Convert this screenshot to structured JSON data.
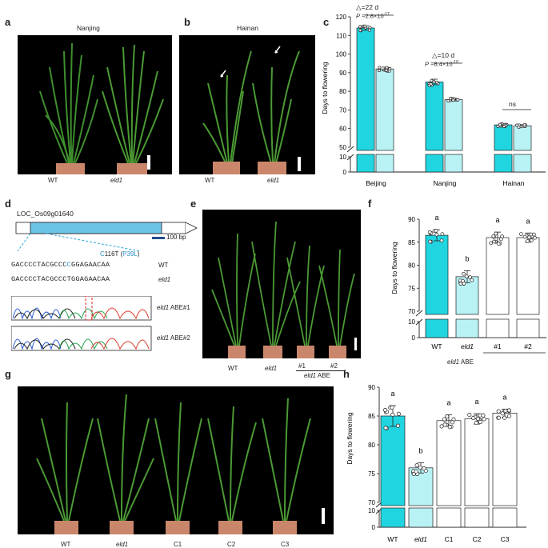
{
  "panels": {
    "a": {
      "label": "a",
      "location": "Nanjing",
      "names": [
        "WT",
        "eld1"
      ]
    },
    "b": {
      "label": "b",
      "location": "Hainan",
      "names": [
        "WT",
        "eld1"
      ]
    },
    "c": {
      "label": "c",
      "ylabel": "Days to flowering",
      "groups": [
        "Beijing",
        "Nanjing",
        "Hainan"
      ],
      "ann": {
        "d1": "=22 d",
        "p1": "=2.8×10",
        "e1": "-17",
        "d2": "=10 d",
        "p2": "=8.4×10",
        "e2": "-10",
        "ns": "ns",
        "P": "P"
      }
    },
    "d": {
      "label": "d",
      "gene": "LOC_Os09g01640",
      "scale": "100 bp",
      "mutation_c": "C",
      "mutation_rest": "116T (",
      "mutation_p": "P39L",
      "mutation_close": ")",
      "seq_wt_a": "GACCCCTACGCCC",
      "seq_wt_b": "C",
      "seq_wt_c": "GGAGAACAA",
      "seq_mut_a": "GACCCCTACGCCC",
      "seq_mut_b": "T",
      "seq_mut_c": "GGAGAACAA",
      "wt": "WT",
      "mut": "eld1",
      "abe1": "eld1",
      "abe1_suffix": " ABE#1",
      "abe2": "eld1",
      "abe2_suffix": " ABE#2"
    },
    "e": {
      "label": "e",
      "names": [
        "WT",
        "eld1",
        "#1",
        "#2"
      ],
      "abe_group": "eld1",
      "abe_suffix": " ABE"
    },
    "f": {
      "label": "f",
      "ylabel": "Days to flowering",
      "letters": [
        "a",
        "b",
        "a",
        "a"
      ],
      "xl": [
        "WT",
        "eld1",
        "#1",
        "#2"
      ],
      "abe": "eld1",
      "abe_suffix": " ABE"
    },
    "g": {
      "label": "g",
      "names": [
        "WT",
        "eld1",
        "C1",
        "C2",
        "C3"
      ]
    },
    "h": {
      "label": "h",
      "ylabel": "Days to flowering",
      "letters": [
        "a",
        "b",
        "a",
        "a",
        "a"
      ],
      "xl": [
        "WT",
        "eld1",
        "C1",
        "C2",
        "C3"
      ]
    }
  },
  "colors": {
    "cyan": "#20d5e0",
    "lightcyan": "#b8f2f5",
    "photo_bg": "#000000",
    "pot": "#c9866b",
    "plant": "#3f8f2e",
    "mutation_blue": "#2a90c8",
    "dashes": "#2fa9d8"
  },
  "chart_data": [
    {
      "id": "c",
      "type": "bar",
      "ylabel": "Days to flowering",
      "categories": [
        "Beijing",
        "Nanjing",
        "Hainan"
      ],
      "series": [
        {
          "values": [
            114,
            85,
            62
          ]
        },
        {
          "values": [
            92,
            75.5,
            61.5
          ]
        }
      ],
      "errors": [
        [
          1.2,
          1.5,
          0.8
        ],
        [
          1.0,
          0.7,
          0.6
        ]
      ],
      "ylim": [
        50,
        120
      ],
      "broken_axis": true,
      "ylow": [
        0,
        10
      ],
      "yticks": [
        50,
        60,
        70,
        80,
        90,
        100,
        110,
        120
      ],
      "lowticks": [
        0,
        10
      ]
    },
    {
      "id": "f",
      "type": "bar",
      "ylabel": "Days to flowering",
      "categories": [
        "WT",
        "eld1",
        "#1",
        "#2"
      ],
      "values": [
        86.5,
        77.5,
        86,
        86
      ],
      "errors": [
        1.2,
        1.3,
        1.2,
        1.0
      ],
      "ylim": [
        70,
        90
      ],
      "broken_axis": true,
      "yticks": [
        70,
        75,
        80,
        85,
        90
      ],
      "lowticks": [
        0,
        10
      ]
    },
    {
      "id": "h",
      "type": "bar",
      "ylabel": "Days to flowering",
      "categories": [
        "WT",
        "eld1",
        "C1",
        "C2",
        "C3"
      ],
      "values": [
        85,
        76,
        84.2,
        84.5,
        85.5
      ],
      "errors": [
        1.8,
        0.9,
        1.0,
        0.9,
        0.7
      ],
      "ylim": [
        70,
        90
      ],
      "broken_axis": true,
      "yticks": [
        70,
        75,
        80,
        85,
        90
      ],
      "lowticks": [
        0,
        10
      ]
    }
  ]
}
